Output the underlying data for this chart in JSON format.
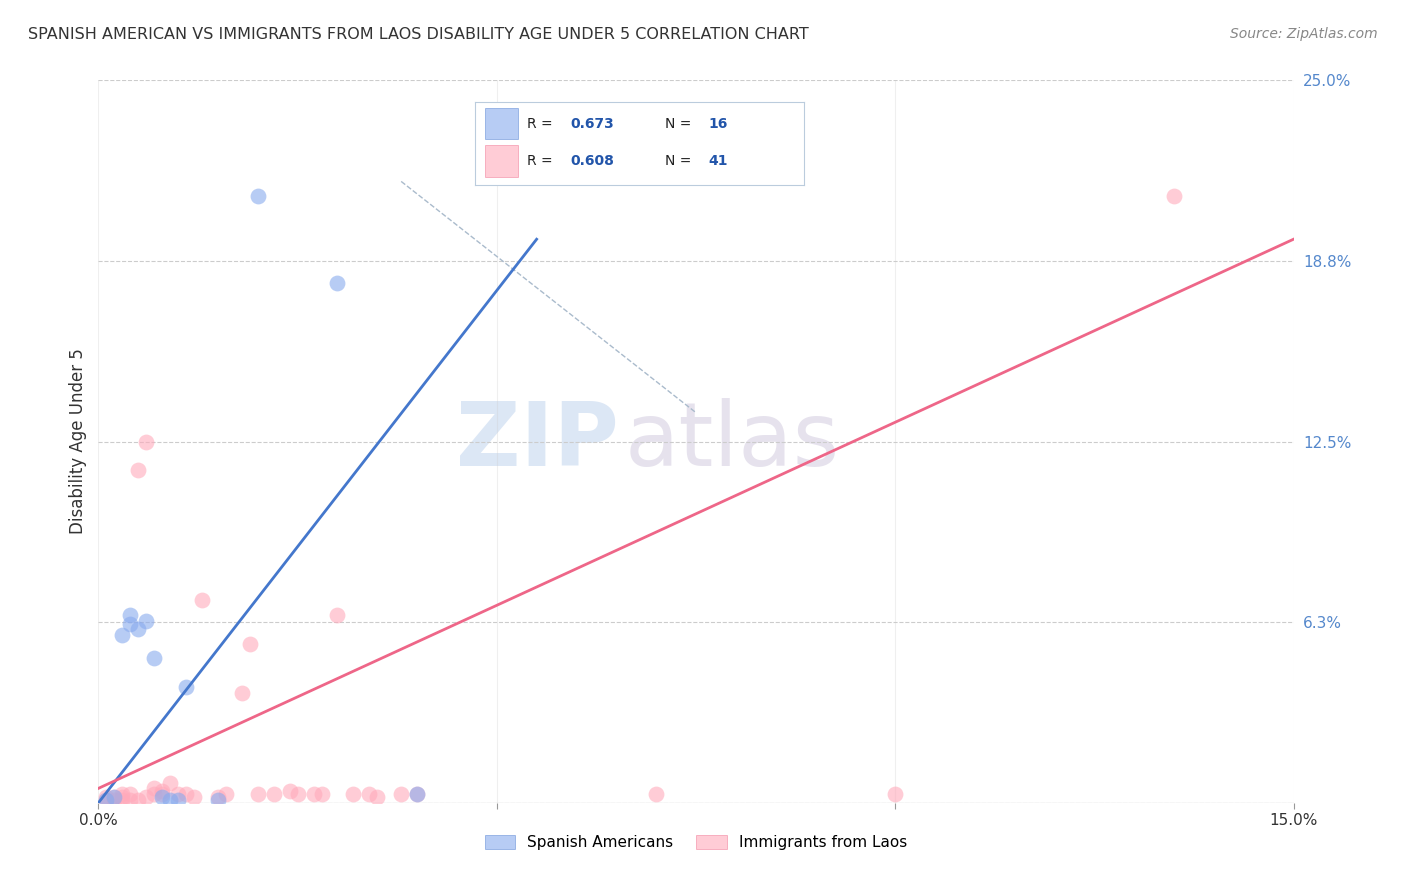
{
  "title": "SPANISH AMERICAN VS IMMIGRANTS FROM LAOS DISABILITY AGE UNDER 5 CORRELATION CHART",
  "source": "Source: ZipAtlas.com",
  "ylabel": "Disability Age Under 5",
  "xlim": [
    0.0,
    0.15
  ],
  "ylim": [
    0.0,
    0.25
  ],
  "xticks": [
    0.0,
    0.05,
    0.1,
    0.15
  ],
  "xticklabels": [
    "0.0%",
    "",
    "",
    "15.0%"
  ],
  "ytick_positions": [
    0.0,
    0.0625,
    0.125,
    0.1875,
    0.25
  ],
  "ytick_labels_right": [
    "",
    "6.3%",
    "12.5%",
    "18.8%",
    "25.0%"
  ],
  "grid_color": "#cccccc",
  "background_color": "#ffffff",
  "watermark_zip": "ZIP",
  "watermark_atlas": "atlas",
  "series1_color": "#88aaee",
  "series2_color": "#ffaabb",
  "series1_color_line": "#4477cc",
  "series2_color_line": "#ee6688",
  "series1_label": "Spanish Americans",
  "series2_label": "Immigrants from Laos",
  "legend_box_color": "#ddeeff",
  "legend_text_color": "#2255aa",
  "blue_scatter_x": [
    0.001,
    0.002,
    0.003,
    0.004,
    0.004,
    0.005,
    0.006,
    0.007,
    0.008,
    0.009,
    0.01,
    0.011,
    0.015,
    0.02,
    0.03,
    0.04
  ],
  "blue_scatter_y": [
    0.001,
    0.002,
    0.058,
    0.062,
    0.065,
    0.06,
    0.063,
    0.05,
    0.002,
    0.001,
    0.001,
    0.04,
    0.001,
    0.21,
    0.18,
    0.003
  ],
  "pink_scatter_x": [
    0.001,
    0.001,
    0.002,
    0.002,
    0.003,
    0.003,
    0.003,
    0.004,
    0.004,
    0.005,
    0.005,
    0.006,
    0.006,
    0.007,
    0.007,
    0.008,
    0.008,
    0.009,
    0.01,
    0.011,
    0.012,
    0.013,
    0.015,
    0.016,
    0.018,
    0.019,
    0.02,
    0.022,
    0.024,
    0.025,
    0.027,
    0.028,
    0.03,
    0.032,
    0.034,
    0.035,
    0.038,
    0.04,
    0.07,
    0.1,
    0.135
  ],
  "pink_scatter_y": [
    0.001,
    0.002,
    0.001,
    0.002,
    0.001,
    0.002,
    0.003,
    0.001,
    0.003,
    0.001,
    0.115,
    0.125,
    0.002,
    0.003,
    0.005,
    0.003,
    0.004,
    0.007,
    0.003,
    0.003,
    0.002,
    0.07,
    0.002,
    0.003,
    0.038,
    0.055,
    0.003,
    0.003,
    0.004,
    0.003,
    0.003,
    0.003,
    0.065,
    0.003,
    0.003,
    0.002,
    0.003,
    0.003,
    0.003,
    0.003,
    0.21
  ],
  "blue_line_x": [
    0.0,
    0.055
  ],
  "blue_line_y": [
    0.0,
    0.195
  ],
  "pink_line_x": [
    0.0,
    0.15
  ],
  "pink_line_y": [
    0.005,
    0.195
  ],
  "dashed_line_x": [
    0.038,
    0.075
  ],
  "dashed_line_y": [
    0.215,
    0.135
  ]
}
